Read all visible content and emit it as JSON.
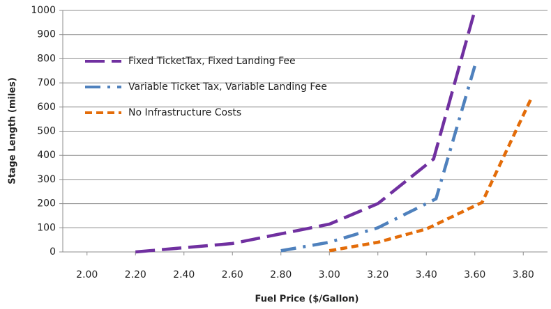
{
  "chart_data": {
    "type": "line",
    "xlabel": "Fuel Price ($/Gallon)",
    "ylabel": "Stage Length (miles)",
    "xlim": [
      1.9,
      3.9
    ],
    "xticks": [
      {
        "value": 2.0,
        "label": "2.00"
      },
      {
        "value": 2.2,
        "label": "2.20"
      },
      {
        "value": 2.4,
        "label": "2.40"
      },
      {
        "value": 2.6,
        "label": "2.60"
      },
      {
        "value": 2.8,
        "label": "2.80"
      },
      {
        "value": 3.0,
        "label": "3.00"
      },
      {
        "value": 3.2,
        "label": "3.20"
      },
      {
        "value": 3.4,
        "label": "3.40"
      },
      {
        "value": 3.6,
        "label": "3.60"
      },
      {
        "value": 3.8,
        "label": "3.80"
      }
    ],
    "ylim": [
      0,
      1000
    ],
    "yticks": [
      0,
      100,
      200,
      300,
      400,
      500,
      600,
      700,
      800,
      900,
      1000
    ],
    "grid": true,
    "legend": "upper-left",
    "series": [
      {
        "name": "Fixed TicketTax, Fixed Landing Fee",
        "color": "#7030a0",
        "dash": "long",
        "x": [
          2.2,
          2.6,
          3.0,
          3.2,
          3.43,
          3.6
        ],
        "values": [
          0,
          35,
          115,
          200,
          385,
          1000
        ]
      },
      {
        "name": "Variable Ticket Tax, Variable Landing Fee",
        "color": "#4f81bd",
        "dash": "dash-dot",
        "x": [
          2.8,
          3.0,
          3.2,
          3.44,
          3.6
        ],
        "values": [
          5,
          40,
          100,
          220,
          770
        ]
      },
      {
        "name": "No Infrastructure Costs",
        "color": "#e36c09",
        "dash": "short",
        "x": [
          3.0,
          3.2,
          3.4,
          3.63,
          3.83
        ],
        "values": [
          5,
          40,
          95,
          205,
          630
        ]
      }
    ]
  }
}
